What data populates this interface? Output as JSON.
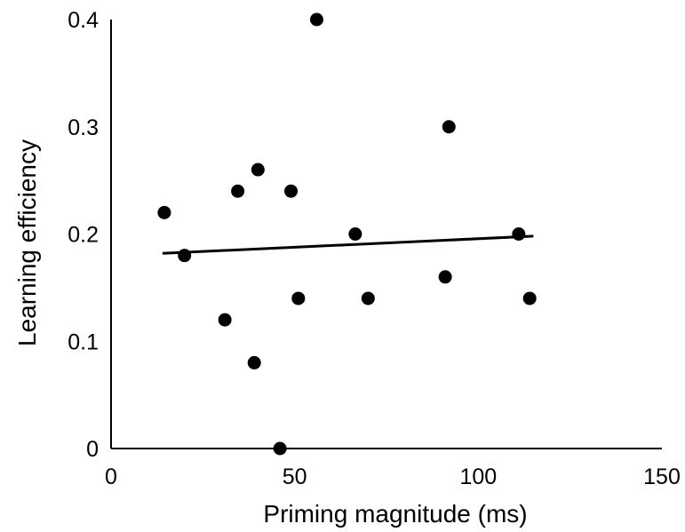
{
  "chart_data": {
    "type": "scatter",
    "title": "",
    "xlabel": "Priming magnitude (ms)",
    "ylabel": "Learning efficiency",
    "xlim": [
      0,
      150
    ],
    "ylim": [
      0,
      0.4
    ],
    "x_ticks": [
      0,
      50,
      100,
      150
    ],
    "y_ticks": [
      0,
      0.1,
      0.2,
      0.3,
      0.4
    ],
    "x_tick_labels": [
      "0",
      "50",
      "100",
      "150"
    ],
    "y_tick_labels": [
      "0",
      "0.1",
      "0.2",
      "0.3",
      "0.4"
    ],
    "grid": false,
    "legend": "none",
    "series": [
      {
        "points": [
          {
            "x": 14.5,
            "y": 0.22
          },
          {
            "x": 20,
            "y": 0.18
          },
          {
            "x": 31,
            "y": 0.12
          },
          {
            "x": 34.5,
            "y": 0.24
          },
          {
            "x": 39,
            "y": 0.08
          },
          {
            "x": 40,
            "y": 0.26
          },
          {
            "x": 46,
            "y": 0.0
          },
          {
            "x": 49,
            "y": 0.24
          },
          {
            "x": 51,
            "y": 0.14
          },
          {
            "x": 56,
            "y": 0.4
          },
          {
            "x": 66.5,
            "y": 0.2
          },
          {
            "x": 70,
            "y": 0.14
          },
          {
            "x": 91,
            "y": 0.16
          },
          {
            "x": 92,
            "y": 0.3
          },
          {
            "x": 111,
            "y": 0.2
          },
          {
            "x": 114,
            "y": 0.14
          }
        ]
      }
    ],
    "trendline": {
      "x_start": 14,
      "y_start": 0.182,
      "x_end": 115,
      "y_end": 0.198
    },
    "colors": {
      "marker": "#000000",
      "axis": "#000000",
      "trendline": "#000000"
    }
  }
}
